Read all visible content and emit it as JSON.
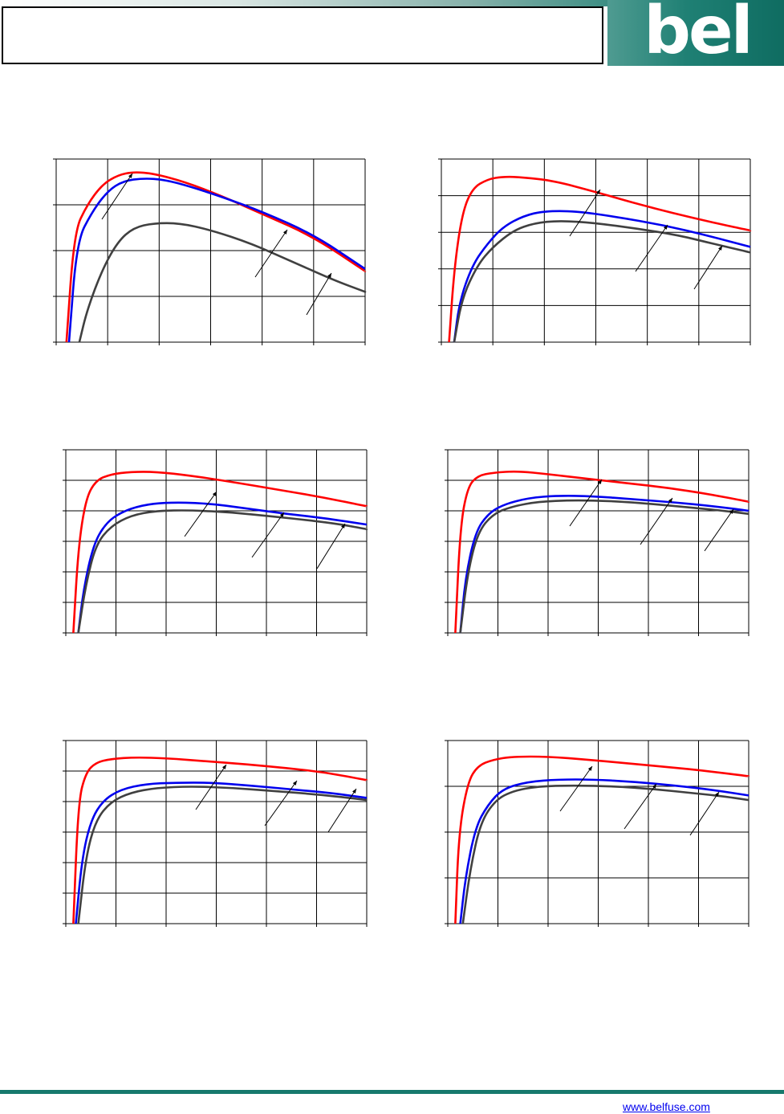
{
  "header": {
    "title": "",
    "logo_text": "bel"
  },
  "footer": {
    "link": "www.belfuse.com"
  },
  "colors": {
    "series_1": "#ff0000",
    "series_2": "#0000ee",
    "series_3": "#404040",
    "brand": "#17796d"
  },
  "chart_data": [
    {
      "type": "line",
      "title": "",
      "xlabel": "",
      "ylabel": "",
      "x_gridlines": 6,
      "y_gridlines": 4,
      "xlim": [
        0,
        6
      ],
      "ylim": [
        0,
        4
      ],
      "series": [
        {
          "values": [
            [
              0.2,
              0
            ],
            [
              0.35,
              2.4
            ],
            [
              0.6,
              3.0
            ],
            [
              0.9,
              3.45
            ],
            [
              1.2,
              3.65
            ],
            [
              1.5,
              3.72
            ],
            [
              1.9,
              3.68
            ],
            [
              2.5,
              3.5
            ],
            [
              3.2,
              3.2
            ],
            [
              4.0,
              2.8
            ],
            [
              5.0,
              2.3
            ],
            [
              6.0,
              1.55
            ]
          ]
        },
        {
          "values": [
            [
              0.25,
              0
            ],
            [
              0.4,
              2.2
            ],
            [
              0.7,
              2.85
            ],
            [
              1.0,
              3.3
            ],
            [
              1.3,
              3.52
            ],
            [
              1.7,
              3.58
            ],
            [
              2.1,
              3.55
            ],
            [
              2.6,
              3.4
            ],
            [
              3.2,
              3.18
            ],
            [
              4.0,
              2.85
            ],
            [
              5.0,
              2.35
            ],
            [
              6.0,
              1.6
            ]
          ]
        },
        {
          "values": [
            [
              0.45,
              0
            ],
            [
              0.6,
              0.7
            ],
            [
              0.9,
              1.6
            ],
            [
              1.2,
              2.2
            ],
            [
              1.5,
              2.5
            ],
            [
              1.9,
              2.6
            ],
            [
              2.4,
              2.6
            ],
            [
              3.0,
              2.45
            ],
            [
              3.8,
              2.15
            ],
            [
              4.6,
              1.75
            ],
            [
              5.4,
              1.35
            ],
            [
              6.0,
              1.1
            ]
          ]
        }
      ]
    },
    {
      "type": "line",
      "title": "",
      "xlabel": "",
      "ylabel": "",
      "x_gridlines": 6,
      "y_gridlines": 5,
      "xlim": [
        0,
        6
      ],
      "ylim": [
        0,
        5
      ],
      "series": [
        {
          "values": [
            [
              0.15,
              0
            ],
            [
              0.25,
              2.0
            ],
            [
              0.4,
              3.5
            ],
            [
              0.6,
              4.2
            ],
            [
              0.9,
              4.45
            ],
            [
              1.2,
              4.52
            ],
            [
              1.6,
              4.5
            ],
            [
              2.2,
              4.4
            ],
            [
              3.0,
              4.1
            ],
            [
              4.0,
              3.7
            ],
            [
              5.0,
              3.35
            ],
            [
              6.0,
              3.05
            ]
          ]
        },
        {
          "values": [
            [
              0.25,
              0
            ],
            [
              0.35,
              1.1
            ],
            [
              0.6,
              2.1
            ],
            [
              0.9,
              2.7
            ],
            [
              1.2,
              3.15
            ],
            [
              1.6,
              3.45
            ],
            [
              2.0,
              3.58
            ],
            [
              2.6,
              3.58
            ],
            [
              3.4,
              3.42
            ],
            [
              4.3,
              3.2
            ],
            [
              5.2,
              2.9
            ],
            [
              6.0,
              2.6
            ]
          ]
        },
        {
          "values": [
            [
              0.25,
              0
            ],
            [
              0.4,
              1.2
            ],
            [
              0.7,
              2.1
            ],
            [
              1.0,
              2.6
            ],
            [
              1.4,
              3.05
            ],
            [
              1.8,
              3.25
            ],
            [
              2.3,
              3.32
            ],
            [
              3.0,
              3.25
            ],
            [
              3.8,
              3.1
            ],
            [
              4.6,
              2.92
            ],
            [
              5.3,
              2.68
            ],
            [
              6.0,
              2.45
            ]
          ]
        }
      ]
    },
    {
      "type": "line",
      "title": "",
      "xlabel": "",
      "ylabel": "",
      "x_gridlines": 6,
      "y_gridlines": 6,
      "xlim": [
        0,
        6
      ],
      "ylim": [
        0,
        6
      ],
      "series": [
        {
          "values": [
            [
              0.15,
              0
            ],
            [
              0.25,
              2.8
            ],
            [
              0.4,
              4.4
            ],
            [
              0.6,
              5.0
            ],
            [
              0.9,
              5.2
            ],
            [
              1.3,
              5.28
            ],
            [
              1.8,
              5.28
            ],
            [
              2.5,
              5.15
            ],
            [
              3.3,
              4.95
            ],
            [
              4.2,
              4.7
            ],
            [
              5.1,
              4.45
            ],
            [
              6.0,
              4.15
            ]
          ]
        },
        {
          "values": [
            [
              0.25,
              0
            ],
            [
              0.35,
              1.4
            ],
            [
              0.55,
              2.9
            ],
            [
              0.8,
              3.6
            ],
            [
              1.1,
              3.95
            ],
            [
              1.5,
              4.18
            ],
            [
              2.0,
              4.28
            ],
            [
              2.8,
              4.25
            ],
            [
              3.6,
              4.08
            ],
            [
              4.4,
              3.9
            ],
            [
              5.2,
              3.75
            ],
            [
              6.0,
              3.55
            ]
          ]
        },
        {
          "values": [
            [
              0.25,
              0
            ],
            [
              0.4,
              1.6
            ],
            [
              0.6,
              2.9
            ],
            [
              0.9,
              3.5
            ],
            [
              1.3,
              3.85
            ],
            [
              1.8,
              4.0
            ],
            [
              2.5,
              4.02
            ],
            [
              3.3,
              3.95
            ],
            [
              4.1,
              3.82
            ],
            [
              4.9,
              3.68
            ],
            [
              5.5,
              3.55
            ],
            [
              6.0,
              3.4
            ]
          ]
        }
      ]
    },
    {
      "type": "line",
      "title": "",
      "xlabel": "",
      "ylabel": "",
      "x_gridlines": 6,
      "y_gridlines": 6,
      "xlim": [
        0,
        6
      ],
      "ylim": [
        0,
        6
      ],
      "series": [
        {
          "values": [
            [
              0.15,
              0
            ],
            [
              0.25,
              3.5
            ],
            [
              0.4,
              4.8
            ],
            [
              0.6,
              5.15
            ],
            [
              0.9,
              5.25
            ],
            [
              1.4,
              5.3
            ],
            [
              2.0,
              5.2
            ],
            [
              2.8,
              5.05
            ],
            [
              3.6,
              4.9
            ],
            [
              4.4,
              4.75
            ],
            [
              5.2,
              4.55
            ],
            [
              6.0,
              4.3
            ]
          ]
        },
        {
          "values": [
            [
              0.25,
              0
            ],
            [
              0.35,
              1.8
            ],
            [
              0.55,
              3.3
            ],
            [
              0.8,
              3.9
            ],
            [
              1.1,
              4.2
            ],
            [
              1.6,
              4.42
            ],
            [
              2.2,
              4.5
            ],
            [
              2.9,
              4.48
            ],
            [
              3.7,
              4.38
            ],
            [
              4.5,
              4.28
            ],
            [
              5.3,
              4.15
            ],
            [
              6.0,
              4.0
            ]
          ]
        },
        {
          "values": [
            [
              0.25,
              0
            ],
            [
              0.4,
              2.0
            ],
            [
              0.6,
              3.3
            ],
            [
              0.9,
              3.9
            ],
            [
              1.3,
              4.15
            ],
            [
              1.8,
              4.3
            ],
            [
              2.5,
              4.35
            ],
            [
              3.3,
              4.32
            ],
            [
              4.1,
              4.22
            ],
            [
              4.9,
              4.1
            ],
            [
              5.5,
              4.0
            ],
            [
              6.0,
              3.9
            ]
          ]
        }
      ]
    },
    {
      "type": "line",
      "title": "",
      "xlabel": "",
      "ylabel": "",
      "x_gridlines": 6,
      "y_gridlines": 6,
      "xlim": [
        0,
        6
      ],
      "ylim": [
        0,
        6
      ],
      "series": [
        {
          "values": [
            [
              0.15,
              0
            ],
            [
              0.25,
              4.0
            ],
            [
              0.4,
              4.95
            ],
            [
              0.6,
              5.28
            ],
            [
              0.9,
              5.4
            ],
            [
              1.4,
              5.45
            ],
            [
              2.0,
              5.42
            ],
            [
              2.8,
              5.32
            ],
            [
              3.6,
              5.22
            ],
            [
              4.4,
              5.1
            ],
            [
              5.2,
              4.95
            ],
            [
              6.0,
              4.7
            ]
          ]
        },
        {
          "values": [
            [
              0.2,
              0
            ],
            [
              0.32,
              2.1
            ],
            [
              0.5,
              3.4
            ],
            [
              0.75,
              4.05
            ],
            [
              1.1,
              4.4
            ],
            [
              1.6,
              4.58
            ],
            [
              2.2,
              4.62
            ],
            [
              2.9,
              4.62
            ],
            [
              3.7,
              4.52
            ],
            [
              4.5,
              4.4
            ],
            [
              5.3,
              4.28
            ],
            [
              6.0,
              4.12
            ]
          ]
        },
        {
          "values": [
            [
              0.25,
              0
            ],
            [
              0.4,
              2.2
            ],
            [
              0.6,
              3.4
            ],
            [
              0.9,
              4.0
            ],
            [
              1.3,
              4.3
            ],
            [
              1.8,
              4.45
            ],
            [
              2.5,
              4.5
            ],
            [
              3.3,
              4.45
            ],
            [
              4.1,
              4.35
            ],
            [
              4.9,
              4.25
            ],
            [
              5.5,
              4.15
            ],
            [
              6.0,
              4.05
            ]
          ]
        }
      ]
    },
    {
      "type": "line",
      "title": "",
      "xlabel": "",
      "ylabel": "",
      "x_gridlines": 6,
      "y_gridlines": 4,
      "xlim": [
        0,
        6
      ],
      "ylim": [
        0,
        4
      ],
      "series": [
        {
          "values": [
            [
              0.15,
              0
            ],
            [
              0.22,
              2.0
            ],
            [
              0.4,
              3.1
            ],
            [
              0.6,
              3.45
            ],
            [
              0.9,
              3.58
            ],
            [
              1.3,
              3.65
            ],
            [
              2.0,
              3.65
            ],
            [
              2.8,
              3.58
            ],
            [
              3.6,
              3.5
            ],
            [
              4.4,
              3.42
            ],
            [
              5.2,
              3.33
            ],
            [
              6.0,
              3.22
            ]
          ]
        },
        {
          "values": [
            [
              0.25,
              0
            ],
            [
              0.35,
              1.0
            ],
            [
              0.55,
              2.1
            ],
            [
              0.8,
              2.6
            ],
            [
              1.1,
              2.95
            ],
            [
              1.6,
              3.1
            ],
            [
              2.2,
              3.15
            ],
            [
              2.9,
              3.15
            ],
            [
              3.7,
              3.1
            ],
            [
              4.5,
              3.02
            ],
            [
              5.3,
              2.92
            ],
            [
              6.0,
              2.8
            ]
          ]
        },
        {
          "values": [
            [
              0.3,
              0
            ],
            [
              0.45,
              1.2
            ],
            [
              0.65,
              2.2
            ],
            [
              0.95,
              2.7
            ],
            [
              1.3,
              2.9
            ],
            [
              1.8,
              3.0
            ],
            [
              2.5,
              3.02
            ],
            [
              3.3,
              3.0
            ],
            [
              4.1,
              2.94
            ],
            [
              4.9,
              2.85
            ],
            [
              5.5,
              2.78
            ],
            [
              6.0,
              2.7
            ]
          ]
        }
      ]
    }
  ]
}
